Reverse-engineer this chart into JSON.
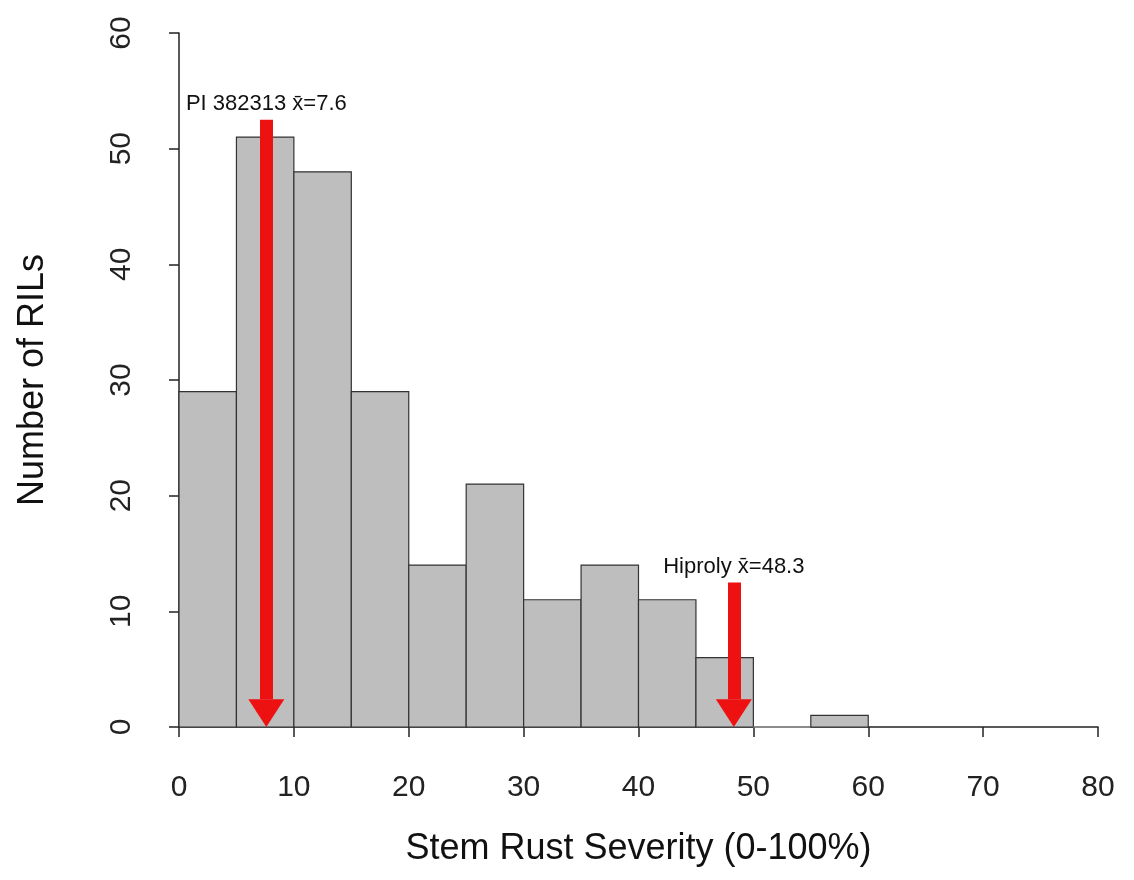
{
  "chart_data": {
    "type": "histogram",
    "xlabel": "Stem Rust Severity (0-100%)",
    "ylabel": "Number of RILs",
    "bins": [
      0,
      5,
      10,
      15,
      20,
      25,
      30,
      35,
      40,
      45,
      50,
      55,
      60
    ],
    "values": [
      29,
      51,
      48,
      29,
      14,
      21,
      11,
      14,
      11,
      6,
      0,
      1
    ],
    "color": "#bebebe",
    "xlim": [
      0,
      80
    ],
    "xticks": [
      0,
      10,
      20,
      30,
      40,
      50,
      60,
      70,
      80
    ],
    "ylim": [
      0,
      60
    ],
    "yticks": [
      0,
      10,
      20,
      30,
      40,
      50,
      60
    ],
    "grid": false,
    "ref_lines": [
      {
        "axis": "x",
        "value": 7.6,
        "label": "PI 382313 x̄=7.6",
        "color": "#ee1111"
      },
      {
        "axis": "x",
        "value": 48.3,
        "label": "Hiproly x̄=48.3",
        "color": "#ee1111"
      }
    ]
  }
}
